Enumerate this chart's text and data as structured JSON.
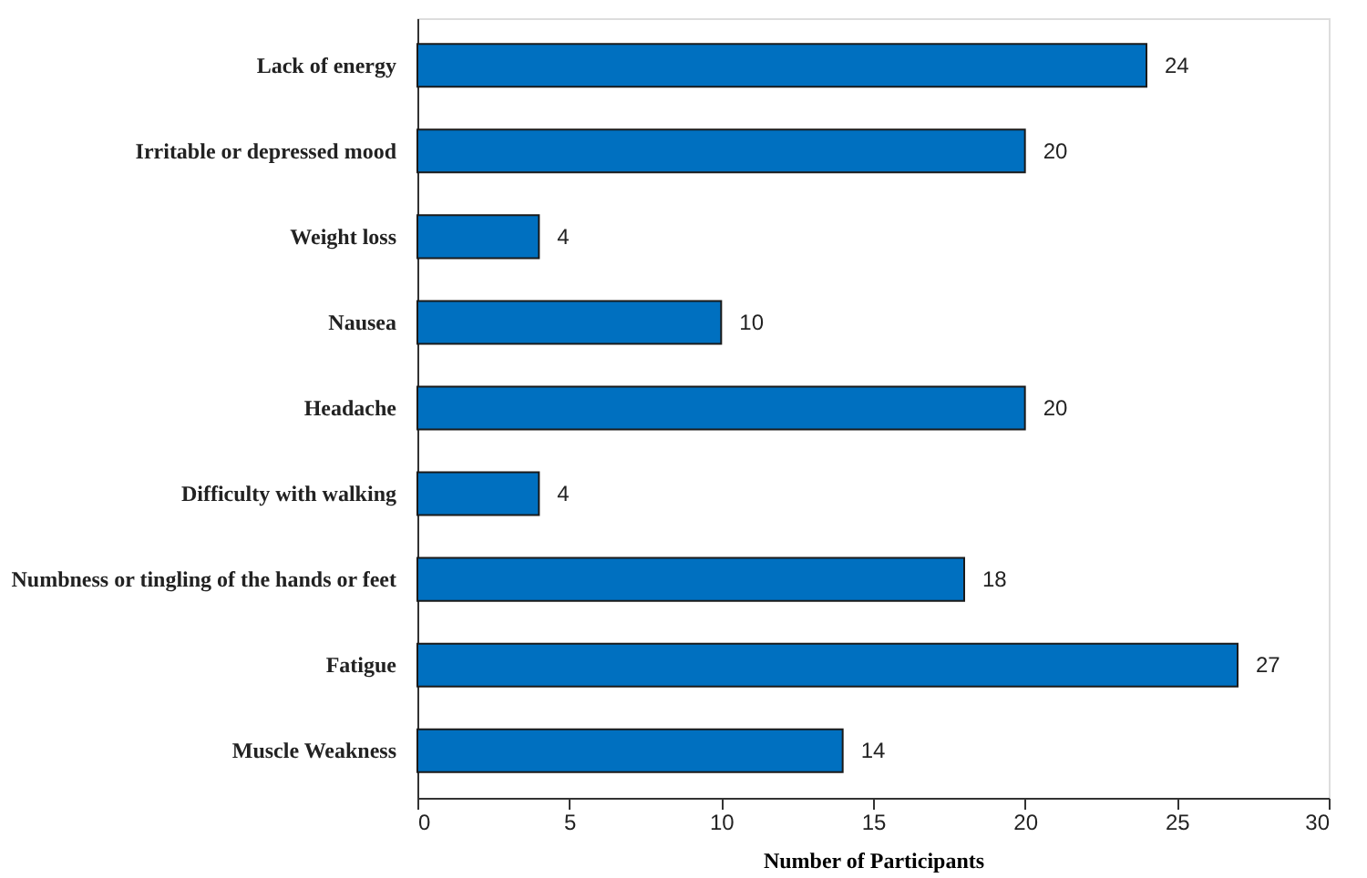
{
  "chart_data": {
    "type": "bar",
    "orientation": "horizontal",
    "xlabel": "Number of Participants",
    "categories": [
      "Lack of energy",
      "Irritable or depressed mood",
      "Weight loss",
      "Nausea",
      "Headache",
      "Difficulty with walking",
      "Numbness or tingling of the hands or feet",
      "Fatigue",
      "Muscle Weakness"
    ],
    "values": [
      24,
      20,
      4,
      10,
      20,
      4,
      18,
      27,
      14
    ],
    "color": "#0070c0",
    "xlim": [
      0,
      30
    ],
    "xticks": [
      0,
      5,
      10,
      15,
      20,
      25,
      30
    ],
    "grid": false,
    "data_labels": true
  }
}
